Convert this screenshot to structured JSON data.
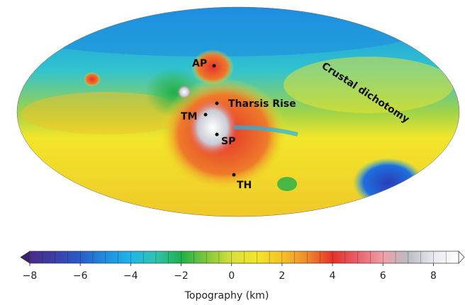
{
  "map": {
    "labels": [
      "AP",
      "Tharsis Rise",
      "TM",
      "SP",
      "TH",
      "Crustal dichotomy"
    ]
  },
  "colorbar": {
    "label": "Topography (km)",
    "lim": [
      -8,
      9
    ],
    "ticks": [
      {
        "value": -8,
        "label": "−8"
      },
      {
        "value": -6,
        "label": "−6"
      },
      {
        "value": -4,
        "label": "−4"
      },
      {
        "value": -2,
        "label": "−2"
      },
      0,
      2,
      4,
      6,
      8
    ],
    "colors": [
      "#4a2a8a",
      "#3a3fa8",
      "#2a5cc8",
      "#1e8ee0",
      "#1fb5ea",
      "#2fc3b0",
      "#1fb04a",
      "#7ec83a",
      "#d6e03a",
      "#f2e62a",
      "#f5c226",
      "#ee8a2a",
      "#e6322a",
      "#e8606a",
      "#eea0a8",
      "#b9bcc4",
      "#e8e8ee",
      "#ffffff"
    ]
  }
}
